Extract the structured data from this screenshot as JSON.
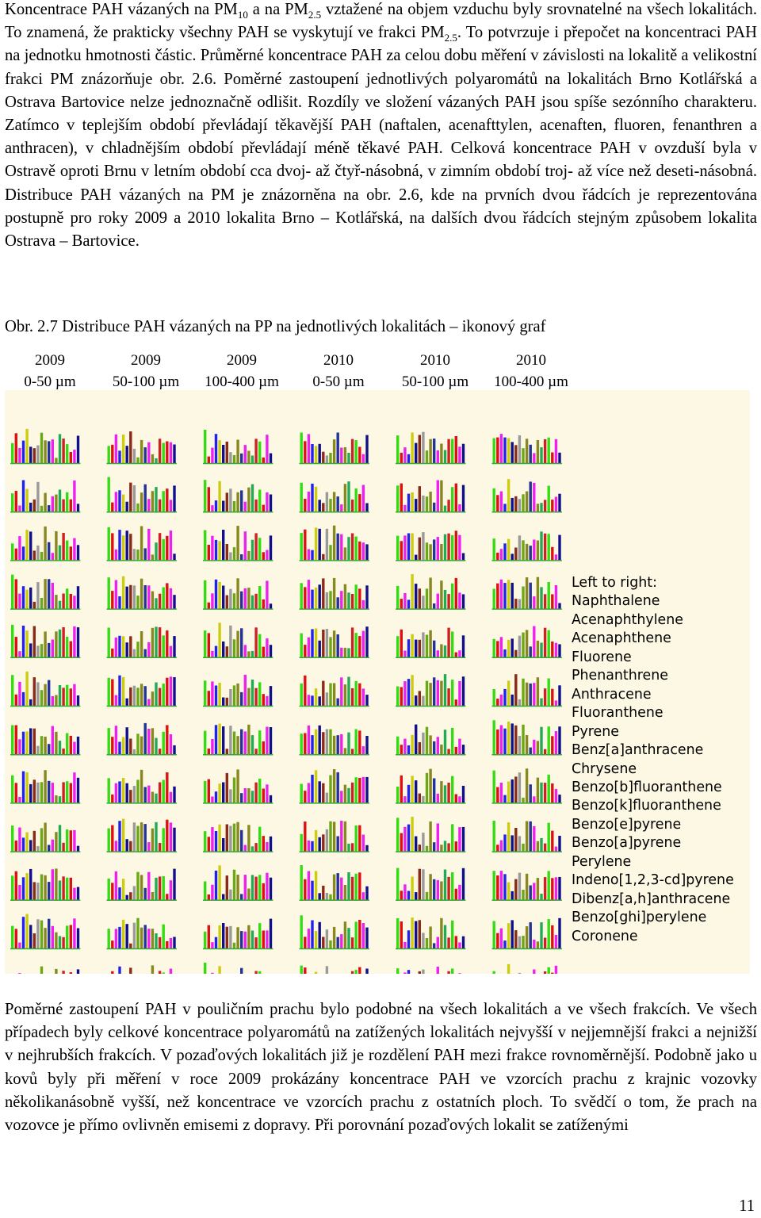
{
  "paragraph1": {
    "s1a": "Koncentrace PAH vázaných na PM",
    "s1b": "10",
    "s1c": " a na PM",
    "s1d": "2.5",
    "s1e": " vztažené na objem vzduchu byly srovnatelné na všech lokalitách. To znamená, že prakticky všechny PAH se vyskytují ve frakci PM",
    "s1f": "2.5",
    "s1g": ". To potvrzuje i přepočet na koncentraci PAH na jednotku hmotnosti částic. Průměrné koncentrace PAH za celou dobu měření v závislosti na lokalitě a velikostní frakci PM znázorňuje obr. 2.6. Poměrné zastoupení jednotlivých polyaromátů na lokalitách Brno Kotlářská a Ostrava Bartovice nelze jednoznačně odlišit. Rozdíly ve složení vázaných PAH jsou spíše sezónního charakteru. Zatímco v teplejším období převládají těkavější PAH (naftalen, acenafttylen, acenaften, fluoren, fenanthren a anthracen), v chladnějším období převládají méně těkavé PAH. Celková koncentrace PAH v ovzduší byla v Ostravě oproti Brnu v letním období cca dvoj- až čtyř-násobná, v zimním období troj- až více než deseti-násobná. Distribuce PAH vázaných na PM je znázorněna na obr. 2.6, kde na prvních dvou řádcích je reprezentována postupně pro roky 2009 a 2010 lokalita Brno – Kotlářská, na dalších dvou řádcích stejným způsobem lokalita Ostrava – Bartovice."
  },
  "caption": "Obr. 2.7 Distribuce PAH vázaných na PP na jednotlivých lokalitách – ikonový graf",
  "column_headers": [
    {
      "year": "2009",
      "range": "0-50 µm"
    },
    {
      "year": "2009",
      "range": "50-100 µm"
    },
    {
      "year": "2009",
      "range": "100-400 µm"
    },
    {
      "year": "2010",
      "range": "0-50 µm"
    },
    {
      "year": "2010",
      "range": "50-100 µm"
    },
    {
      "year": "2010",
      "range": "100-400 µm"
    }
  ],
  "legend": {
    "title": "Left to right:",
    "items": [
      {
        "name": "Naphthalene",
        "color": "#33dd11"
      },
      {
        "name": "Acenaphthylene",
        "color": "#dd1111"
      },
      {
        "name": "Acenaphthene",
        "color": "#ee22ee"
      },
      {
        "name": "Fluorene",
        "color": "#2222ee"
      },
      {
        "name": "Phenanthrene",
        "color": "#cccc11"
      },
      {
        "name": "Anthracene",
        "color": "#10108a"
      },
      {
        "name": "Fluoranthene",
        "color": "#8a2a18"
      },
      {
        "name": "Pyrene",
        "color": "#9a9a9a"
      },
      {
        "name": "Benz[a]anthracene",
        "color": "#6aa818"
      },
      {
        "name": "Chrysene",
        "color": "#888820"
      },
      {
        "name": "Benzo[b]fluoranthene",
        "color": "#223399"
      },
      {
        "name": "Benzo[k]fluoranthene",
        "color": "#ee22ee"
      },
      {
        "name": "Benzo[e]pyrene",
        "color": "#888820"
      },
      {
        "name": "Benzo[a]pyrene",
        "color": "#22aa55"
      },
      {
        "name": "Perylene",
        "color": "#cc2222"
      },
      {
        "name": "Indeno[1,2,3-cd]pyrene",
        "color": "#33dd11"
      },
      {
        "name": "Dibenz[a,h]anthracene",
        "color": "#dd1111"
      },
      {
        "name": "Benzo[ghi]perylene",
        "color": "#ee22ee"
      },
      {
        "name": "Coronene",
        "color": "#10108a"
      }
    ]
  },
  "chart_data": {
    "type": "bar",
    "description_rows": 12,
    "description_cols": 6,
    "series": [
      "Naphthalene",
      "Acenaphthylene",
      "Acenaphthene",
      "Fluorene",
      "Phenanthrene",
      "Anthracene",
      "Fluoranthene",
      "Pyrene",
      "Benz[a]anthracene",
      "Chrysene",
      "Benzo[b]fluoranthene",
      "Benzo[k]fluoranthene",
      "Benzo[e]pyrene",
      "Benzo[a]pyrene",
      "Perylene",
      "Indeno[1,2,3-cd]pyrene",
      "Dibenz[a,h]anthracene",
      "Benzo[ghi]perylene",
      "Coronene"
    ],
    "bar_colors": [
      "#33dd11",
      "#dd1111",
      "#ee22ee",
      "#2222ee",
      "#cccc11",
      "#10108a",
      "#8a2a18",
      "#9a9a9a",
      "#6aa818",
      "#888820",
      "#223399",
      "#ee22ee",
      "#888820",
      "#22aa55",
      "#cc2222",
      "#33dd11",
      "#dd1111",
      "#ee22ee",
      "#10108a"
    ],
    "axis_color": "#33aa33"
  },
  "paragraph2": "Poměrné zastoupení PAH v pouličním prachu bylo podobné na všech lokalitách a ve všech frakcích. Ve všech případech byly celkové koncentrace polyaromátů na zatížených lokalitách nejvyšší v nejjemnější frakci a nejnižší v nejhrubších frakcích. V pozaďových lokalitách již je rozdělení PAH mezi frakce rovnoměrnější. Podobně jako u kovů byly při měření v roce 2009 prokázány koncentrace PAH ve vzorcích prachu z krajnic vozovky několikanásobně vyšší, než koncentrace ve vzorcích prachu z ostatních ploch. To svědčí o tom, že prach na vozovce je přímo ovlivněn emisemi z dopravy. Při porovnání pozaďových lokalit se zatíženými",
  "page_number": "11"
}
